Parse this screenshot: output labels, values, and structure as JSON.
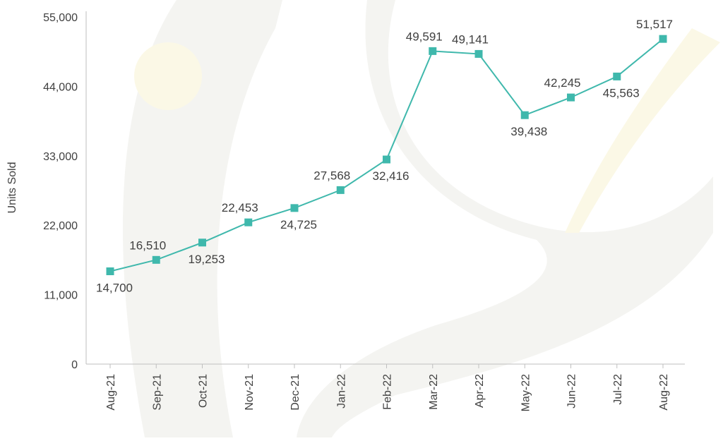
{
  "colors": {
    "line": "#3fb8ac",
    "marker": "#3fb8ac",
    "axis": "#bfbfbf",
    "text": "#404040",
    "watermark": "#f4f4f1",
    "watermark_accent": "#fbf8e6"
  },
  "chart_data": {
    "type": "line",
    "title": "",
    "xlabel": "",
    "ylabel": "Units Sold",
    "categories": [
      "Aug-21",
      "Sep-21",
      "Oct-21",
      "Nov-21",
      "Dec-21",
      "Jan-22",
      "Feb-22",
      "Mar-22",
      "Apr-22",
      "May-22",
      "Jun-22",
      "Jul-22",
      "Aug-22"
    ],
    "series": [
      {
        "values": [
          14700,
          16510,
          19253,
          22453,
          24725,
          27568,
          32416,
          49591,
          49141,
          39438,
          42245,
          45563,
          51517
        ],
        "labels": [
          "14,700",
          "16,510",
          "19,253",
          "22,453",
          "24,725",
          "27,568",
          "32,416",
          "49,591",
          "49,141",
          "39,438",
          "42,245",
          "45,563",
          "51,517"
        ],
        "label_positions": [
          "below",
          "above",
          "below",
          "above",
          "below",
          "above",
          "below",
          "above",
          "above",
          "below",
          "above",
          "below",
          "above"
        ]
      }
    ],
    "ylim": [
      0,
      55000
    ],
    "yticks": [
      0,
      11000,
      22000,
      33000,
      44000,
      55000
    ],
    "ytick_labels": [
      "0",
      "11,000",
      "22,000",
      "33,000",
      "44,000",
      "55,000"
    ],
    "grid": false,
    "legend": "none"
  }
}
